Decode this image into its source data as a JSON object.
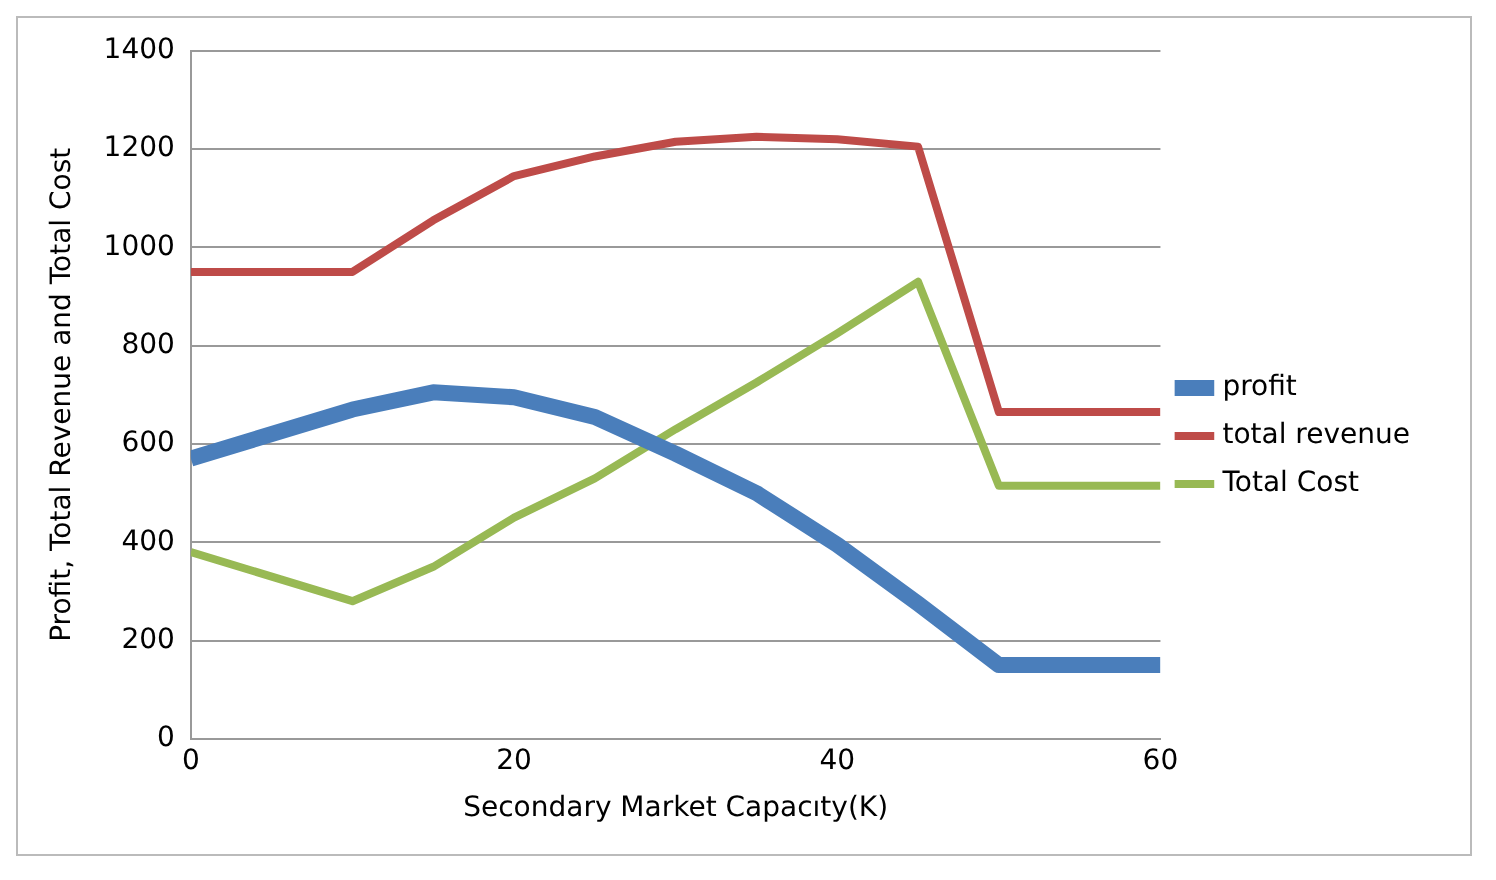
{
  "chart_data": {
    "type": "line",
    "xlabel": "Secondary Market Capacıty(K)",
    "ylabel": "Profit, Total Revenue and Total Cost",
    "x": [
      0,
      10,
      15,
      20,
      25,
      30,
      35,
      40,
      45,
      50,
      60
    ],
    "xlim": [
      0,
      60
    ],
    "xticks": [
      0,
      20,
      40,
      60
    ],
    "ylim": [
      0,
      1400
    ],
    "yticks": [
      0,
      200,
      400,
      600,
      800,
      1000,
      1200,
      1400
    ],
    "grid": "y",
    "legend": "right",
    "marker": "none",
    "line_style": "solid",
    "series": [
      {
        "name": "profit",
        "color": "#4a7ebb",
        "values": [
          570,
          670,
          705,
          695,
          655,
          580,
          500,
          395,
          275,
          150,
          150
        ]
      },
      {
        "name": "total revenue",
        "color": "#be4b48",
        "values": [
          950,
          950,
          1055,
          1145,
          1185,
          1215,
          1225,
          1220,
          1205,
          665,
          665
        ]
      },
      {
        "name": "Total Cost",
        "color": "#98b954",
        "values": [
          380,
          280,
          350,
          450,
          530,
          630,
          725,
          825,
          930,
          515,
          515
        ]
      }
    ]
  }
}
